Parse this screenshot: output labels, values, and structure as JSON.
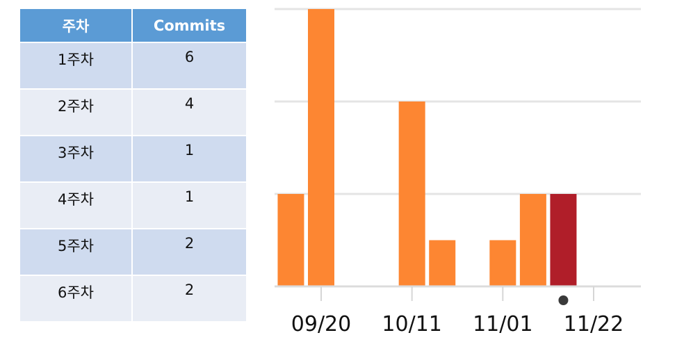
{
  "table": {
    "headers": [
      "주차",
      "Commits"
    ],
    "rows": [
      {
        "week": "1주차",
        "commits": "6"
      },
      {
        "week": "2주차",
        "commits": "4"
      },
      {
        "week": "3주차",
        "commits": "1"
      },
      {
        "week": "4주차",
        "commits": "1"
      },
      {
        "week": "5주차",
        "commits": "2"
      },
      {
        "week": "6주차",
        "commits": "2"
      }
    ]
  },
  "chart_data": {
    "type": "bar",
    "x_tick_labels": [
      "09/20",
      "10/11",
      "11/01",
      "11/22"
    ],
    "x_ticks": [
      "2020-09-20",
      "2020-10-11",
      "2020-11-01",
      "2020-11-22"
    ],
    "x": [
      "2020-09-13",
      "2020-09-20",
      "2020-10-11",
      "2020-10-18",
      "2020-11-01",
      "2020-11-08",
      "2020-11-15"
    ],
    "values": [
      2,
      6,
      4,
      1,
      1,
      2,
      2
    ],
    "colors": [
      "#fd8632",
      "#fd8632",
      "#fd8632",
      "#fd8632",
      "#fd8632",
      "#fd8632",
      "#b01e29"
    ],
    "ylim": [
      0,
      6
    ],
    "grid": true,
    "current_marker_color": "#3a3a3a"
  }
}
